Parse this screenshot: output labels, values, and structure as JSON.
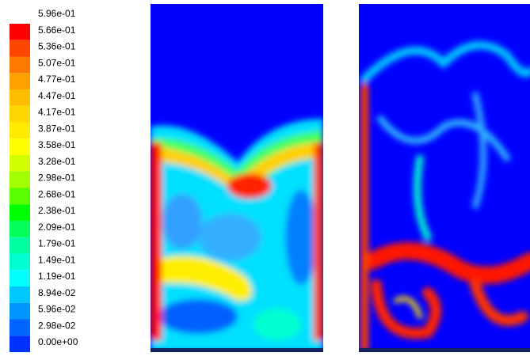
{
  "chart_data": {
    "type": "contour",
    "levels": [
      {
        "value": 0.596,
        "label": "5.96e-01"
      },
      {
        "value": 0.566,
        "label": "5.66e-01"
      },
      {
        "value": 0.536,
        "label": "5.36e-01"
      },
      {
        "value": 0.507,
        "label": "5.07e-01"
      },
      {
        "value": 0.477,
        "label": "4.77e-01"
      },
      {
        "value": 0.447,
        "label": "4.47e-01"
      },
      {
        "value": 0.417,
        "label": "4.17e-01"
      },
      {
        "value": 0.387,
        "label": "3.87e-01"
      },
      {
        "value": 0.358,
        "label": "3.58e-01"
      },
      {
        "value": 0.328,
        "label": "3.28e-01"
      },
      {
        "value": 0.298,
        "label": "2.98e-01"
      },
      {
        "value": 0.268,
        "label": "2.68e-01"
      },
      {
        "value": 0.238,
        "label": "2.38e-01"
      },
      {
        "value": 0.209,
        "label": "2.09e-01"
      },
      {
        "value": 0.179,
        "label": "1.79e-01"
      },
      {
        "value": 0.149,
        "label": "1.49e-01"
      },
      {
        "value": 0.119,
        "label": "1.19e-01"
      },
      {
        "value": 0.0894,
        "label": "8.94e-02"
      },
      {
        "value": 0.0596,
        "label": "5.96e-02"
      },
      {
        "value": 0.0298,
        "label": "2.98e-02"
      },
      {
        "value": 0,
        "label": "0.00e+00"
      }
    ],
    "colors": [
      "#ff0000",
      "#ff4600",
      "#ff7800",
      "#ffa000",
      "#ffbe00",
      "#ffd700",
      "#ffeb00",
      "#ffff00",
      "#d2ff00",
      "#a0ff00",
      "#5aff00",
      "#00ff00",
      "#00ff5a",
      "#00ffa0",
      "#00ffd2",
      "#00ffff",
      "#00c8ff",
      "#0096ff",
      "#0064ff",
      "#0032ff"
    ]
  }
}
